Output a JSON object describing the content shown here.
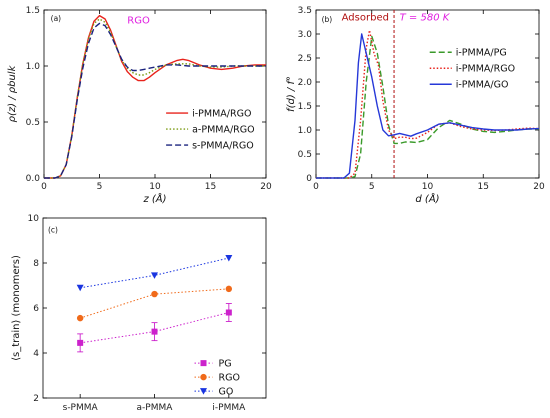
{
  "chart_data": [
    {
      "id": "a",
      "type": "line",
      "panel_label": "(a)",
      "annotation": "RGO",
      "annotation_color": "#e020e0",
      "xlabel": "z (Å)",
      "ylabel": "ρ(z) / ρbulk",
      "xlim": [
        0,
        20
      ],
      "ylim": [
        0,
        1.5
      ],
      "xticks": [
        0,
        5,
        10,
        15,
        20
      ],
      "yticks": [
        0.0,
        0.5,
        1.0,
        1.5
      ],
      "xtick_labels": [
        "0",
        "5",
        "10",
        "15",
        "20"
      ],
      "ytick_labels": [
        "0.0",
        "0.5",
        "1.0",
        "1.5"
      ],
      "legend_position": "center-right",
      "series": [
        {
          "name": "i-PMMA/RGO",
          "color": "#e8231c",
          "dash": "solid",
          "x": [
            0,
            1,
            1.5,
            2,
            2.5,
            3,
            3.5,
            4,
            4.5,
            5,
            5.5,
            6,
            6.5,
            7,
            7.5,
            8,
            8.5,
            9,
            9.5,
            10,
            11,
            12,
            12.5,
            13,
            14,
            15,
            16,
            17,
            18,
            19,
            20
          ],
          "y": [
            0,
            0,
            0.02,
            0.12,
            0.38,
            0.72,
            1.02,
            1.25,
            1.4,
            1.45,
            1.42,
            1.32,
            1.18,
            1.04,
            0.95,
            0.9,
            0.87,
            0.87,
            0.9,
            0.94,
            1.01,
            1.05,
            1.06,
            1.05,
            1.01,
            0.98,
            0.97,
            0.98,
            1.0,
            1.01,
            1.01
          ]
        },
        {
          "name": "a-PMMA/RGO",
          "color": "#7a9a10",
          "dash": "dotted",
          "x": [
            0,
            1,
            1.5,
            2,
            2.5,
            3,
            3.5,
            4,
            4.5,
            5,
            5.5,
            6,
            6.5,
            7,
            7.5,
            8,
            8.5,
            9,
            9.5,
            10,
            11,
            12,
            13,
            14,
            15,
            16,
            17,
            18,
            19,
            20
          ],
          "y": [
            0,
            0,
            0.02,
            0.12,
            0.38,
            0.72,
            1.02,
            1.24,
            1.38,
            1.42,
            1.39,
            1.3,
            1.17,
            1.05,
            0.98,
            0.94,
            0.92,
            0.92,
            0.94,
            0.97,
            1.01,
            1.02,
            1.02,
            1.0,
            0.99,
            0.99,
            1.0,
            1.0,
            1.0,
            1.0
          ]
        },
        {
          "name": "s-PMMA/RGO",
          "color": "#1a237e",
          "dash": "dashed",
          "x": [
            0,
            1,
            1.5,
            2,
            2.5,
            3,
            3.5,
            4,
            4.5,
            5,
            5.5,
            6,
            6.5,
            7,
            7.5,
            8,
            8.5,
            9,
            9.5,
            10,
            11,
            12,
            13,
            14,
            15,
            16,
            17,
            18,
            19,
            20
          ],
          "y": [
            0,
            0,
            0.02,
            0.12,
            0.37,
            0.7,
            0.98,
            1.2,
            1.34,
            1.38,
            1.36,
            1.28,
            1.17,
            1.06,
            0.99,
            0.96,
            0.96,
            0.97,
            0.98,
            0.99,
            1.01,
            1.01,
            1.0,
            1.0,
            1.0,
            1.0,
            1.0,
            1.0,
            1.0,
            1.0
          ]
        }
      ]
    },
    {
      "id": "b",
      "type": "line",
      "panel_label": "(b)",
      "annotation_left": "Adsorbed",
      "annotation_left_color": "#b01010",
      "annotation_right": "T = 580 K",
      "annotation_right_color": "#e020e0",
      "vline_x": 7,
      "vline_color": "#b01010",
      "xlabel": "d (Å)",
      "ylabel": "f(d) / f°",
      "xlim": [
        0,
        20
      ],
      "ylim": [
        0,
        3.5
      ],
      "xticks": [
        0,
        5,
        10,
        15,
        20
      ],
      "yticks": [
        0,
        0.5,
        1.0,
        1.5,
        2.0,
        2.5,
        3.0,
        3.5
      ],
      "xtick_labels": [
        "0",
        "5",
        "10",
        "15",
        "20"
      ],
      "ytick_labels": [
        "0",
        "0.5",
        "1.0",
        "1.5",
        "2.0",
        "2.5",
        "3.0",
        "3.5"
      ],
      "legend_position": "center-right",
      "series": [
        {
          "name": "i-PMMA/PG",
          "color": "#3a9a2a",
          "dash": "dashed",
          "x": [
            0,
            3,
            3.5,
            4,
            4.5,
            5,
            5.5,
            6,
            6.5,
            7,
            7.5,
            8,
            8.5,
            9,
            10,
            11,
            12,
            13,
            14,
            15,
            16,
            17,
            18,
            19,
            20
          ],
          "y": [
            0,
            0,
            0.03,
            0.5,
            2.0,
            2.95,
            2.6,
            1.9,
            1.1,
            0.72,
            0.72,
            0.75,
            0.75,
            0.74,
            0.8,
            1.05,
            1.2,
            1.12,
            1.02,
            0.97,
            0.95,
            0.97,
            1.0,
            1.02,
            1.02
          ]
        },
        {
          "name": "i-PMMA/RGO",
          "color": "#e8231c",
          "dash": "dotted",
          "x": [
            0,
            3,
            3.5,
            4,
            4.5,
            4.8,
            5.2,
            5.6,
            6,
            6.5,
            7,
            7.5,
            8,
            8.5,
            9,
            10,
            11,
            12,
            13,
            14,
            15,
            16,
            17,
            18,
            19,
            20
          ],
          "y": [
            0,
            0,
            0.1,
            1.2,
            2.7,
            3.08,
            2.6,
            2.35,
            1.6,
            1.0,
            0.82,
            0.85,
            0.85,
            0.82,
            0.83,
            0.95,
            1.12,
            1.15,
            1.07,
            1.02,
            1.0,
            0.99,
            1.0,
            1.02,
            1.04,
            1.03
          ]
        },
        {
          "name": "i-PMMA/GO",
          "color": "#2638d8",
          "dash": "solid",
          "x": [
            0,
            2.5,
            3,
            3.5,
            3.8,
            4.1,
            4.5,
            5,
            5.5,
            6,
            6.5,
            7,
            7.5,
            8,
            8.5,
            9,
            10,
            11,
            12,
            13,
            14,
            15,
            16,
            17,
            18,
            19,
            20
          ],
          "y": [
            0,
            0,
            0.1,
            1.2,
            2.4,
            3.0,
            2.6,
            2.1,
            1.5,
            1.0,
            0.88,
            0.9,
            0.93,
            0.9,
            0.87,
            0.92,
            1.0,
            1.12,
            1.15,
            1.1,
            1.05,
            1.02,
            1.0,
            1.0,
            1.0,
            1.02,
            1.03
          ]
        }
      ]
    },
    {
      "id": "c",
      "type": "scatter",
      "panel_label": "(c)",
      "xlabel": "",
      "ylabel": "⟨s_train⟩ (monomers)",
      "categories": [
        "s-PMMA",
        "a-PMMA",
        "i-PMMA"
      ],
      "ylim": [
        2,
        10
      ],
      "yticks": [
        2,
        4,
        6,
        8,
        10
      ],
      "ytick_labels": [
        "2",
        "4",
        "6",
        "8",
        "10"
      ],
      "legend_position": "bottom-right",
      "series": [
        {
          "name": "PG",
          "color": "#cc22cc",
          "marker": "square",
          "values": [
            4.45,
            4.95,
            5.8
          ],
          "errors": [
            0.4,
            0.4,
            0.4
          ]
        },
        {
          "name": "RGO",
          "color": "#f06a1a",
          "marker": "circle",
          "values": [
            5.55,
            6.62,
            6.85
          ],
          "errors": [
            0,
            0,
            0
          ]
        },
        {
          "name": "GO",
          "color": "#1a35e0",
          "marker": "triangle-down",
          "values": [
            6.9,
            7.45,
            8.22
          ],
          "errors": [
            0,
            0,
            0
          ]
        }
      ]
    }
  ]
}
